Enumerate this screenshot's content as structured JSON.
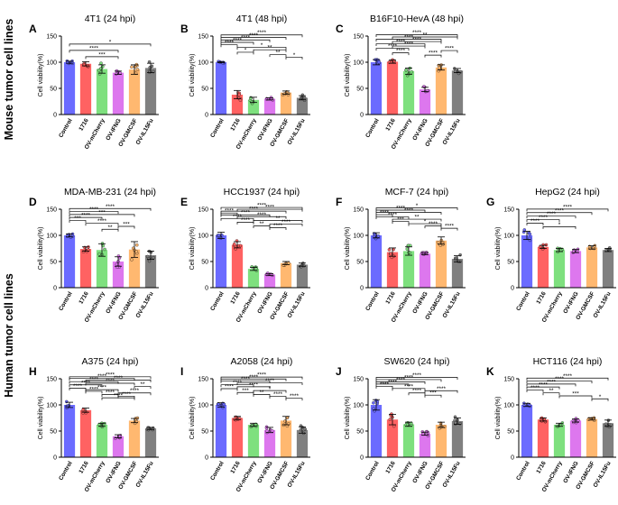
{
  "figure": {
    "row_group_labels": [
      "Mouse tumor cell lines",
      "Human tumor cell lines"
    ],
    "ylabel": "Cell viability(%)",
    "categories": [
      "Control",
      "1716",
      "OV-mCherry",
      "OV-IFNG",
      "OV-GMCSF",
      "OV-IL15Fu"
    ],
    "colors": [
      "#6b6bff",
      "#ff6262",
      "#7ee07e",
      "#dd77ee",
      "#ffb870",
      "#808080"
    ]
  },
  "chart_data": [
    {
      "panel": "A",
      "title": "4T1 (24 hpi)",
      "type": "bar",
      "ylim": [
        0,
        150
      ],
      "yticks": [
        0,
        50,
        100,
        150
      ],
      "values": [
        100,
        97,
        87,
        80,
        86,
        89
      ],
      "errors": [
        2,
        4,
        8,
        3,
        9,
        9
      ],
      "annotations": [
        {
          "from": 0,
          "to": 5,
          "label": "*"
        },
        {
          "from": 0,
          "to": 3,
          "label": "****"
        },
        {
          "from": 1,
          "to": 3,
          "label": "***"
        }
      ]
    },
    {
      "panel": "B",
      "title": "4T1 (48 hpi)",
      "type": "bar",
      "ylim": [
        0,
        150
      ],
      "yticks": [
        0,
        50,
        100,
        150
      ],
      "values": [
        100,
        38,
        28,
        30,
        42,
        32
      ],
      "errors": [
        1,
        8,
        5,
        2,
        3,
        4
      ],
      "annotations": [
        {
          "from": 0,
          "to": 5,
          "label": "****"
        },
        {
          "from": 0,
          "to": 4,
          "label": "****"
        },
        {
          "from": 0,
          "to": 3,
          "label": "****"
        },
        {
          "from": 0,
          "to": 2,
          "label": "****"
        },
        {
          "from": 0,
          "to": 1,
          "label": "****"
        },
        {
          "from": 1,
          "to": 4,
          "label": "*"
        },
        {
          "from": 2,
          "to": 4,
          "label": "**"
        },
        {
          "from": 1,
          "to": 2,
          "label": "*"
        },
        {
          "from": 3,
          "to": 4,
          "label": "**"
        },
        {
          "from": 4,
          "to": 5,
          "label": "*"
        }
      ]
    },
    {
      "panel": "C",
      "title": "B16F10-HevA (48 hpi)",
      "type": "bar",
      "ylim": [
        0,
        150
      ],
      "yticks": [
        0,
        50,
        100,
        150
      ],
      "values": [
        100,
        101,
        83,
        48,
        90,
        84
      ],
      "errors": [
        5,
        3,
        6,
        4,
        5,
        4
      ],
      "annotations": [
        {
          "from": 0,
          "to": 5,
          "label": "****"
        },
        {
          "from": 1,
          "to": 5,
          "label": "**"
        },
        {
          "from": 0,
          "to": 4,
          "label": "****"
        },
        {
          "from": 1,
          "to": 4,
          "label": "****"
        },
        {
          "from": 0,
          "to": 3,
          "label": "****"
        },
        {
          "from": 1,
          "to": 3,
          "label": "****"
        },
        {
          "from": 0,
          "to": 2,
          "label": "****"
        },
        {
          "from": 4,
          "to": 5,
          "label": "****"
        },
        {
          "from": 1,
          "to": 2,
          "label": "****"
        },
        {
          "from": 3,
          "to": 4,
          "label": "****"
        }
      ]
    },
    {
      "panel": "D",
      "title": "MDA-MB-231 (24 hpi)",
      "type": "bar",
      "ylim": [
        0,
        150
      ],
      "yticks": [
        0,
        50,
        100,
        150
      ],
      "values": [
        100,
        74,
        72,
        50,
        73,
        62
      ],
      "errors": [
        3,
        4,
        12,
        9,
        15,
        8
      ],
      "annotations": [
        {
          "from": 0,
          "to": 5,
          "label": "****"
        },
        {
          "from": 0,
          "to": 3,
          "label": "****"
        },
        {
          "from": 0,
          "to": 4,
          "label": "***"
        },
        {
          "from": 0,
          "to": 2,
          "label": "****"
        },
        {
          "from": 0,
          "to": 1,
          "label": "***"
        },
        {
          "from": 1,
          "to": 3,
          "label": "****"
        },
        {
          "from": 3,
          "to": 4,
          "label": "***"
        },
        {
          "from": 2,
          "to": 3,
          "label": "**"
        }
      ]
    },
    {
      "panel": "E",
      "title": "HCC1937 (24 hpi)",
      "type": "bar",
      "ylim": [
        0,
        150
      ],
      "yticks": [
        0,
        50,
        100,
        150
      ],
      "values": [
        100,
        82,
        36,
        25,
        47,
        44
      ],
      "errors": [
        6,
        6,
        3,
        2,
        3,
        3
      ],
      "annotations": [
        {
          "from": 0,
          "to": 5,
          "label": "****"
        },
        {
          "from": 1,
          "to": 5,
          "label": "****"
        },
        {
          "from": 0,
          "to": 4,
          "label": "****"
        },
        {
          "from": 0,
          "to": 1,
          "label": "****"
        },
        {
          "from": 0,
          "to": 3,
          "label": "****"
        },
        {
          "from": 1,
          "to": 4,
          "label": "****"
        },
        {
          "from": 0,
          "to": 2,
          "label": "****"
        },
        {
          "from": 2,
          "to": 5,
          "label": "**"
        },
        {
          "from": 1,
          "to": 2,
          "label": "****"
        },
        {
          "from": 3,
          "to": 5,
          "label": "****"
        },
        {
          "from": 2,
          "to": 3,
          "label": "**"
        },
        {
          "from": 3,
          "to": 4,
          "label": "****"
        }
      ]
    },
    {
      "panel": "F",
      "title": "MCF-7 (24 hpi)",
      "type": "bar",
      "ylim": [
        0,
        150
      ],
      "yticks": [
        0,
        50,
        100,
        150
      ],
      "values": [
        100,
        68,
        70,
        65,
        90,
        55
      ],
      "errors": [
        5,
        8,
        8,
        2,
        7,
        6
      ],
      "annotations": [
        {
          "from": 0,
          "to": 5,
          "label": "*"
        },
        {
          "from": 0,
          "to": 3,
          "label": "****"
        },
        {
          "from": 0,
          "to": 4,
          "label": "****"
        },
        {
          "from": 0,
          "to": 1,
          "label": "****"
        },
        {
          "from": 0,
          "to": 2,
          "label": "****"
        },
        {
          "from": 1,
          "to": 4,
          "label": "**"
        },
        {
          "from": 1,
          "to": 2,
          "label": "***"
        },
        {
          "from": 2,
          "to": 4,
          "label": "*"
        },
        {
          "from": 3,
          "to": 4,
          "label": "****"
        },
        {
          "from": 4,
          "to": 5,
          "label": "****"
        }
      ]
    },
    {
      "panel": "G",
      "title": "HepG2 (24 hpi)",
      "type": "bar",
      "ylim": [
        0,
        150
      ],
      "yticks": [
        0,
        50,
        100,
        150
      ],
      "values": [
        100,
        78,
        72,
        70,
        77,
        72
      ],
      "errors": [
        8,
        3,
        3,
        3,
        3,
        3
      ],
      "annotations": [
        {
          "from": 0,
          "to": 5,
          "label": "****"
        },
        {
          "from": 0,
          "to": 4,
          "label": "****"
        },
        {
          "from": 0,
          "to": 3,
          "label": "****"
        },
        {
          "from": 0,
          "to": 2,
          "label": "****"
        },
        {
          "from": 0,
          "to": 1,
          "label": "****"
        },
        {
          "from": 1,
          "to": 3,
          "label": "*"
        }
      ]
    },
    {
      "panel": "H",
      "title": "A375 (24 hpi)",
      "type": "bar",
      "ylim": [
        0,
        150
      ],
      "yticks": [
        0,
        50,
        100,
        150
      ],
      "values": [
        100,
        90,
        62,
        40,
        70,
        55
      ],
      "errors": [
        5,
        4,
        3,
        3,
        4,
        2
      ],
      "annotations": [
        {
          "from": 0,
          "to": 5,
          "label": "****"
        },
        {
          "from": 0,
          "to": 4,
          "label": "****"
        },
        {
          "from": 1,
          "to": 5,
          "label": "****"
        },
        {
          "from": 0,
          "to": 3,
          "label": "****"
        },
        {
          "from": 1,
          "to": 4,
          "label": "****"
        },
        {
          "from": 0,
          "to": 2,
          "label": "****"
        },
        {
          "from": 4,
          "to": 5,
          "label": "**"
        },
        {
          "from": 0,
          "to": 1,
          "label": "****"
        },
        {
          "from": 1,
          "to": 3,
          "label": "****"
        },
        {
          "from": 1,
          "to": 2,
          "label": "****"
        },
        {
          "from": 3,
          "to": 5,
          "label": "****"
        },
        {
          "from": 2,
          "to": 3,
          "label": "****"
        },
        {
          "from": 3,
          "to": 4,
          "label": "****"
        },
        {
          "from": 2,
          "to": 4,
          "label": "****"
        }
      ]
    },
    {
      "panel": "I",
      "title": "A2058 (24 hpi)",
      "type": "bar",
      "ylim": [
        0,
        150
      ],
      "yticks": [
        0,
        50,
        100,
        150
      ],
      "values": [
        100,
        75,
        62,
        52,
        70,
        52
      ],
      "errors": [
        4,
        3,
        3,
        5,
        8,
        6
      ],
      "annotations": [
        {
          "from": 0,
          "to": 5,
          "label": "****"
        },
        {
          "from": 0,
          "to": 4,
          "label": "****"
        },
        {
          "from": 0,
          "to": 3,
          "label": "****"
        },
        {
          "from": 1,
          "to": 5,
          "label": "****"
        },
        {
          "from": 0,
          "to": 2,
          "label": "****"
        },
        {
          "from": 1,
          "to": 3,
          "label": "****"
        },
        {
          "from": 0,
          "to": 1,
          "label": "****"
        },
        {
          "from": 2,
          "to": 4,
          "label": "*"
        },
        {
          "from": 1,
          "to": 2,
          "label": "***"
        },
        {
          "from": 2,
          "to": 3,
          "label": "**"
        },
        {
          "from": 3,
          "to": 4,
          "label": "****"
        },
        {
          "from": 4,
          "to": 5,
          "label": "****"
        }
      ]
    },
    {
      "panel": "J",
      "title": "SW620 (24 hpi)",
      "type": "bar",
      "ylim": [
        0,
        150
      ],
      "yticks": [
        0,
        50,
        100,
        150
      ],
      "values": [
        100,
        72,
        63,
        45,
        62,
        69
      ],
      "errors": [
        10,
        10,
        4,
        3,
        5,
        6
      ],
      "annotations": [
        {
          "from": 0,
          "to": 5,
          "label": "****"
        },
        {
          "from": 0,
          "to": 4,
          "label": "****"
        },
        {
          "from": 0,
          "to": 3,
          "label": "****"
        },
        {
          "from": 0,
          "to": 2,
          "label": "****"
        },
        {
          "from": 0,
          "to": 1,
          "label": "****"
        },
        {
          "from": 1,
          "to": 3,
          "label": "****"
        },
        {
          "from": 3,
          "to": 5,
          "label": "****"
        },
        {
          "from": 2,
          "to": 3,
          "label": "****"
        },
        {
          "from": 3,
          "to": 4,
          "label": "***"
        }
      ]
    },
    {
      "panel": "K",
      "title": "HCT116 (24 hpi)",
      "type": "bar",
      "ylim": [
        0,
        150
      ],
      "yticks": [
        0,
        50,
        100,
        150
      ],
      "values": [
        100,
        72,
        62,
        70,
        73,
        65
      ],
      "errors": [
        3,
        3,
        3,
        3,
        2,
        6
      ],
      "annotations": [
        {
          "from": 0,
          "to": 5,
          "label": "****"
        },
        {
          "from": 0,
          "to": 4,
          "label": "****"
        },
        {
          "from": 0,
          "to": 3,
          "label": "****"
        },
        {
          "from": 0,
          "to": 2,
          "label": "****"
        },
        {
          "from": 0,
          "to": 1,
          "label": "****"
        },
        {
          "from": 1,
          "to": 2,
          "label": "**"
        },
        {
          "from": 2,
          "to": 4,
          "label": "***"
        },
        {
          "from": 4,
          "to": 5,
          "label": "*"
        }
      ]
    }
  ]
}
